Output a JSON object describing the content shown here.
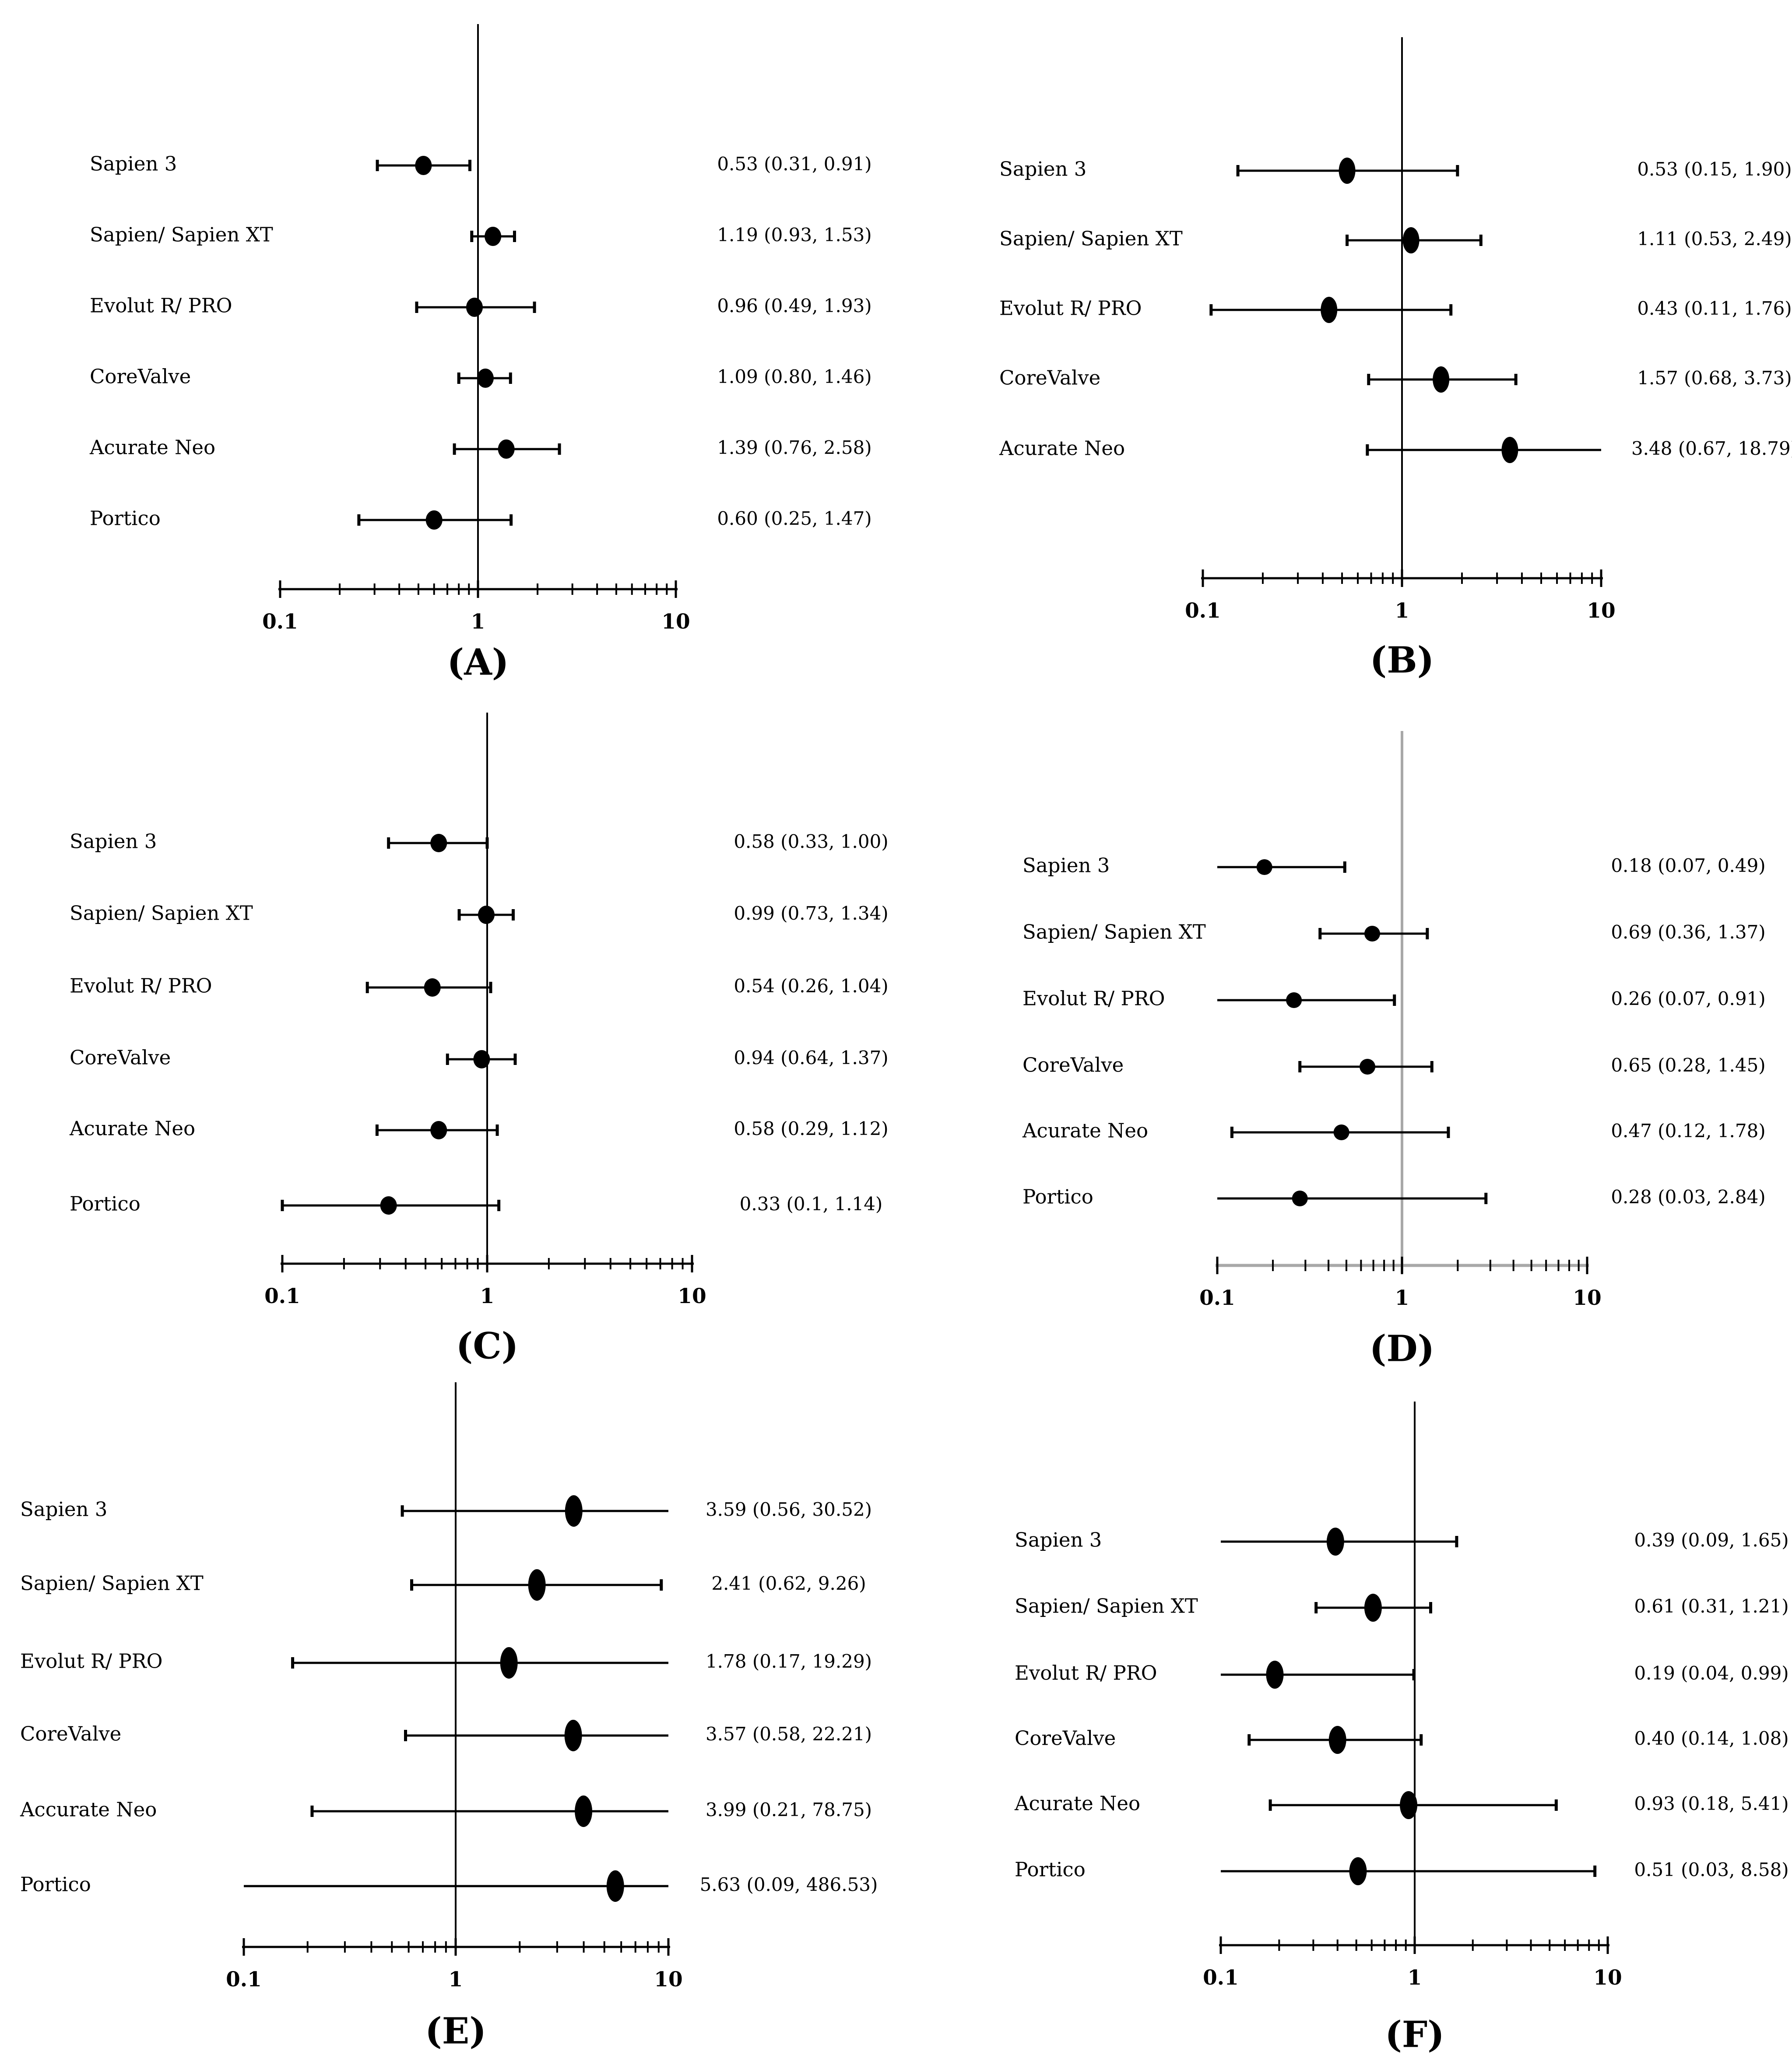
{
  "figure": {
    "background_color": "#ffffff",
    "foreground_color": "#000000",
    "panel_d_line_color": "#a8a8a8",
    "panel_letters": [
      "(A)",
      "(B)",
      "(C)",
      "(D)",
      "(E)",
      "(F)"
    ]
  },
  "chart_data": [
    {
      "type": "scatter",
      "subtype": "forest-plot",
      "panel": "(A)",
      "x_scale": "log",
      "xlim": [
        0.1,
        10
      ],
      "tick_labels": [
        "0.1",
        "1",
        "10"
      ],
      "reference_line": 1,
      "categories": [
        "Sapien 3",
        "Sapien/ Sapien XT",
        "Evolut R/ PRO",
        "CoreValve",
        "Acurate Neo",
        "Portico"
      ],
      "estimates": [
        0.53,
        1.19,
        0.96,
        1.09,
        1.39,
        0.6
      ],
      "lower_ci": [
        0.31,
        0.93,
        0.49,
        0.8,
        0.76,
        0.25
      ],
      "upper_ci": [
        0.91,
        1.53,
        1.93,
        1.46,
        2.58,
        1.47
      ],
      "value_labels": [
        "0.53 (0.31, 0.91)",
        "1.19 (0.93, 1.53)",
        "0.96 (0.49, 1.93)",
        "1.09 (0.80, 1.46)",
        "1.39 (0.76, 2.58)",
        "0.60 (0.25, 1.47)"
      ]
    },
    {
      "type": "scatter",
      "subtype": "forest-plot",
      "panel": "(B)",
      "x_scale": "log",
      "xlim": [
        0.1,
        10
      ],
      "tick_labels": [
        "0.1",
        "1",
        "10"
      ],
      "reference_line": 1,
      "categories": [
        "Sapien 3",
        "Sapien/ Sapien XT",
        "Evolut R/ PRO",
        "CoreValve",
        "Acurate Neo"
      ],
      "estimates": [
        0.53,
        1.11,
        0.43,
        1.57,
        3.48
      ],
      "lower_ci": [
        0.15,
        0.53,
        0.11,
        0.68,
        0.67
      ],
      "upper_ci": [
        1.9,
        2.49,
        1.76,
        3.73,
        18.79
      ],
      "value_labels": [
        "0.53 (0.15, 1.90)",
        "1.11 (0.53, 2.49)",
        "0.43 (0.11, 1.76)",
        "1.57 (0.68, 3.73)",
        "3.48 (0.67, 18.79)"
      ]
    },
    {
      "type": "scatter",
      "subtype": "forest-plot",
      "panel": "(C)",
      "x_scale": "log",
      "xlim": [
        0.1,
        10
      ],
      "tick_labels": [
        "0.1",
        "1",
        "10"
      ],
      "reference_line": 1,
      "categories": [
        "Sapien 3",
        "Sapien/ Sapien XT",
        "Evolut R/ PRO",
        "CoreValve",
        "Acurate Neo",
        "Portico"
      ],
      "estimates": [
        0.58,
        0.99,
        0.54,
        0.94,
        0.58,
        0.33
      ],
      "lower_ci": [
        0.33,
        0.73,
        0.26,
        0.64,
        0.29,
        0.1
      ],
      "upper_ci": [
        1.0,
        1.34,
        1.04,
        1.37,
        1.12,
        1.14
      ],
      "value_labels": [
        "0.58 (0.33, 1.00)",
        "0.99 (0.73, 1.34)",
        "0.54 (0.26, 1.04)",
        "0.94 (0.64, 1.37)",
        "0.58 (0.29, 1.12)",
        "0.33 (0.1, 1.14)"
      ]
    },
    {
      "type": "scatter",
      "subtype": "forest-plot",
      "panel": "(D)",
      "x_scale": "log",
      "xlim": [
        0.1,
        10
      ],
      "tick_labels": [
        "0.1",
        "1",
        "10"
      ],
      "reference_line": 1,
      "categories": [
        "Sapien 3",
        "Sapien/ Sapien XT",
        "Evolut R/ PRO",
        "CoreValve",
        "Acurate Neo",
        "Portico"
      ],
      "estimates": [
        0.18,
        0.69,
        0.26,
        0.65,
        0.47,
        0.28
      ],
      "lower_ci": [
        0.07,
        0.36,
        0.07,
        0.28,
        0.12,
        0.03
      ],
      "upper_ci": [
        0.49,
        1.37,
        0.91,
        1.45,
        1.78,
        2.84
      ],
      "value_labels": [
        "0.18 (0.07, 0.49)",
        "0.69 (0.36, 1.37)",
        "0.26 (0.07, 0.91)",
        "0.65 (0.28, 1.45)",
        "0.47 (0.12, 1.78)",
        "0.28 (0.03, 2.84)"
      ]
    },
    {
      "type": "scatter",
      "subtype": "forest-plot",
      "panel": "(E)",
      "x_scale": "log",
      "xlim": [
        0.1,
        10
      ],
      "tick_labels": [
        "0.1",
        "1",
        "10"
      ],
      "reference_line": 1,
      "categories": [
        "Sapien 3",
        "Sapien/ Sapien XT",
        "Evolut R/ PRO",
        "CoreValve",
        "Accurate Neo",
        "Portico"
      ],
      "estimates": [
        3.59,
        2.41,
        1.78,
        3.57,
        3.99,
        5.63
      ],
      "lower_ci": [
        0.56,
        0.62,
        0.17,
        0.58,
        0.21,
        0.09
      ],
      "upper_ci": [
        30.52,
        9.26,
        19.29,
        22.21,
        78.75,
        486.53
      ],
      "value_labels": [
        "3.59 (0.56, 30.52)",
        "2.41 (0.62, 9.26)",
        "1.78 (0.17, 19.29)",
        "3.57 (0.58, 22.21)",
        "3.99 (0.21, 78.75)",
        "5.63 (0.09, 486.53)"
      ]
    },
    {
      "type": "scatter",
      "subtype": "forest-plot",
      "panel": "(F)",
      "x_scale": "log",
      "xlim": [
        0.1,
        10
      ],
      "tick_labels": [
        "0.1",
        "1",
        "10"
      ],
      "reference_line": 1,
      "categories": [
        "Sapien 3",
        "Sapien/ Sapien XT",
        "Evolut R/ PRO",
        "CoreValve",
        "Acurate Neo",
        "Portico"
      ],
      "estimates": [
        0.39,
        0.61,
        0.19,
        0.4,
        0.93,
        0.51
      ],
      "lower_ci": [
        0.09,
        0.31,
        0.04,
        0.14,
        0.18,
        0.03
      ],
      "upper_ci": [
        1.65,
        1.21,
        0.99,
        1.08,
        5.41,
        8.58
      ],
      "value_labels": [
        "0.39 (0.09, 1.65)",
        "0.61 (0.31, 1.21)",
        "0.19 (0.04, 0.99)",
        "0.40 (0.14, 1.08)",
        "0.93 (0.18, 5.41)",
        "0.51 (0.03, 8.58)"
      ]
    }
  ]
}
